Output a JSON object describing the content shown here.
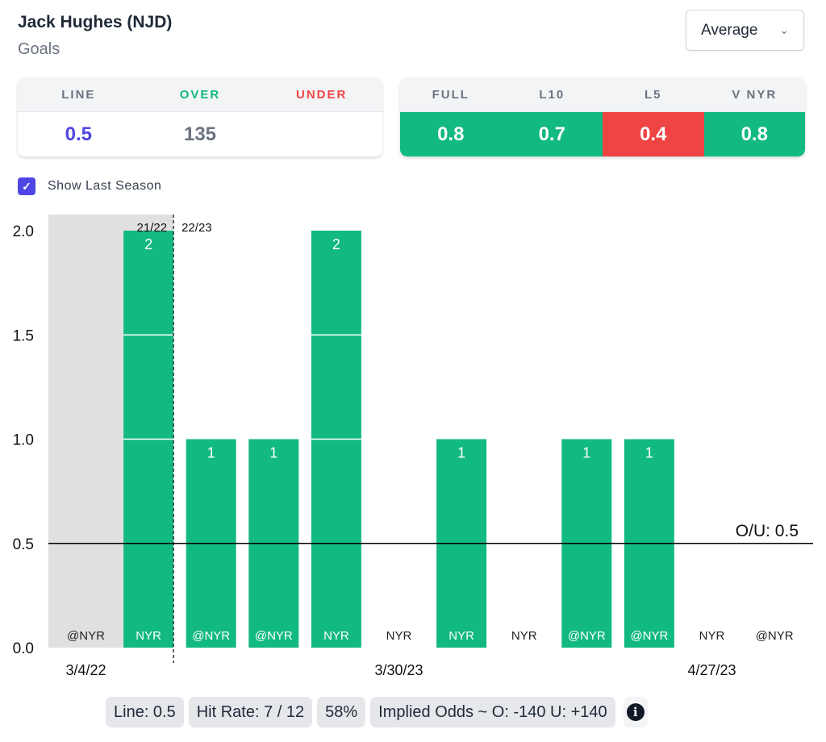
{
  "header": {
    "title": "Jack Hughes (NJD)",
    "subtitle": "Goals",
    "dropdown": "Average",
    "checkbox_label": "Show Last Season"
  },
  "line_card": {
    "headers": [
      "LINE",
      "OVER",
      "UNDER"
    ],
    "values": [
      "0.5",
      "135",
      ""
    ],
    "colors": [
      "#4f46e5",
      "#10b981",
      "#ef4444"
    ]
  },
  "avg_card": {
    "headers": [
      "FULL",
      "L10",
      "L5",
      "V NYR"
    ],
    "values": [
      "0.8",
      "0.7",
      "0.4",
      "0.8"
    ],
    "bg": [
      "#12b981",
      "#12b981",
      "#ef4444",
      "#12b981"
    ]
  },
  "chart_data": {
    "type": "bar",
    "categories": [
      "@NYR",
      "NYR",
      "@NYR",
      "@NYR",
      "NYR",
      "NYR",
      "NYR",
      "NYR",
      "@NYR",
      "@NYR",
      "NYR",
      "@NYR"
    ],
    "values": [
      0,
      2,
      1,
      1,
      2,
      0,
      1,
      0,
      1,
      1,
      0,
      0
    ],
    "last_season_count": 2,
    "season_labels": [
      "21/22",
      "22/23"
    ],
    "yticks": [
      "0.0",
      "0.5",
      "1.0",
      "1.5",
      "2.0"
    ],
    "ylim": [
      0,
      2
    ],
    "line": 0.5,
    "line_label": "O/U: 0.5",
    "date_labels": [
      {
        "index": 0,
        "text": "3/4/22"
      },
      {
        "index": 5,
        "text": "3/30/23"
      },
      {
        "index": 10,
        "text": "4/27/23"
      }
    ],
    "bar_color": "#12b981"
  },
  "footer": {
    "line": "Line: 0.5",
    "hit_rate": "Hit Rate: 7 / 12",
    "pct": "58%",
    "odds": "Implied Odds ~ O: -140 U: +140",
    "info": "i"
  }
}
